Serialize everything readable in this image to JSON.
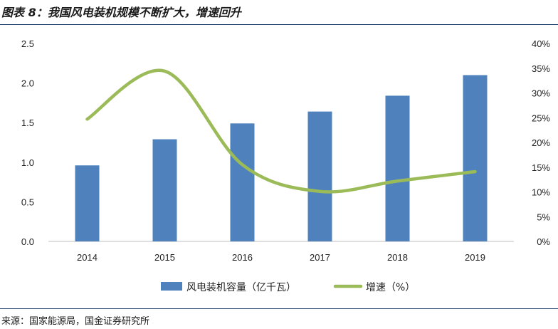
{
  "figure": {
    "title": "图表 8：我国风电装机规模不断扩大，增速回升",
    "source": "来源：国家能源局，国金证券研究所"
  },
  "chart_data": {
    "type": "bar",
    "categories": [
      "2014",
      "2015",
      "2016",
      "2017",
      "2018",
      "2019"
    ],
    "series": [
      {
        "name": "风电装机容量（亿千瓦）",
        "type": "bar",
        "axis": "left",
        "values": [
          0.96,
          1.29,
          1.49,
          1.64,
          1.84,
          2.1
        ]
      },
      {
        "name": "增速（%）",
        "type": "line",
        "axis": "right",
        "values": [
          24.7,
          34.4,
          15.5,
          10.1,
          12.2,
          14.1
        ]
      }
    ],
    "y_left": {
      "range": [
        0,
        2.5
      ],
      "ticks": [
        "0.0",
        "0.5",
        "1.0",
        "1.5",
        "2.0",
        "2.5"
      ]
    },
    "y_right": {
      "range": [
        0,
        40
      ],
      "ticks": [
        "0%",
        "5%",
        "10%",
        "15%",
        "20%",
        "25%",
        "30%",
        "35%",
        "40%"
      ]
    },
    "legend_position": "bottom",
    "grid": false,
    "colors": {
      "bar": "#4f81bd",
      "line": "#9bbb59",
      "axis": "#bfbfbf"
    }
  }
}
